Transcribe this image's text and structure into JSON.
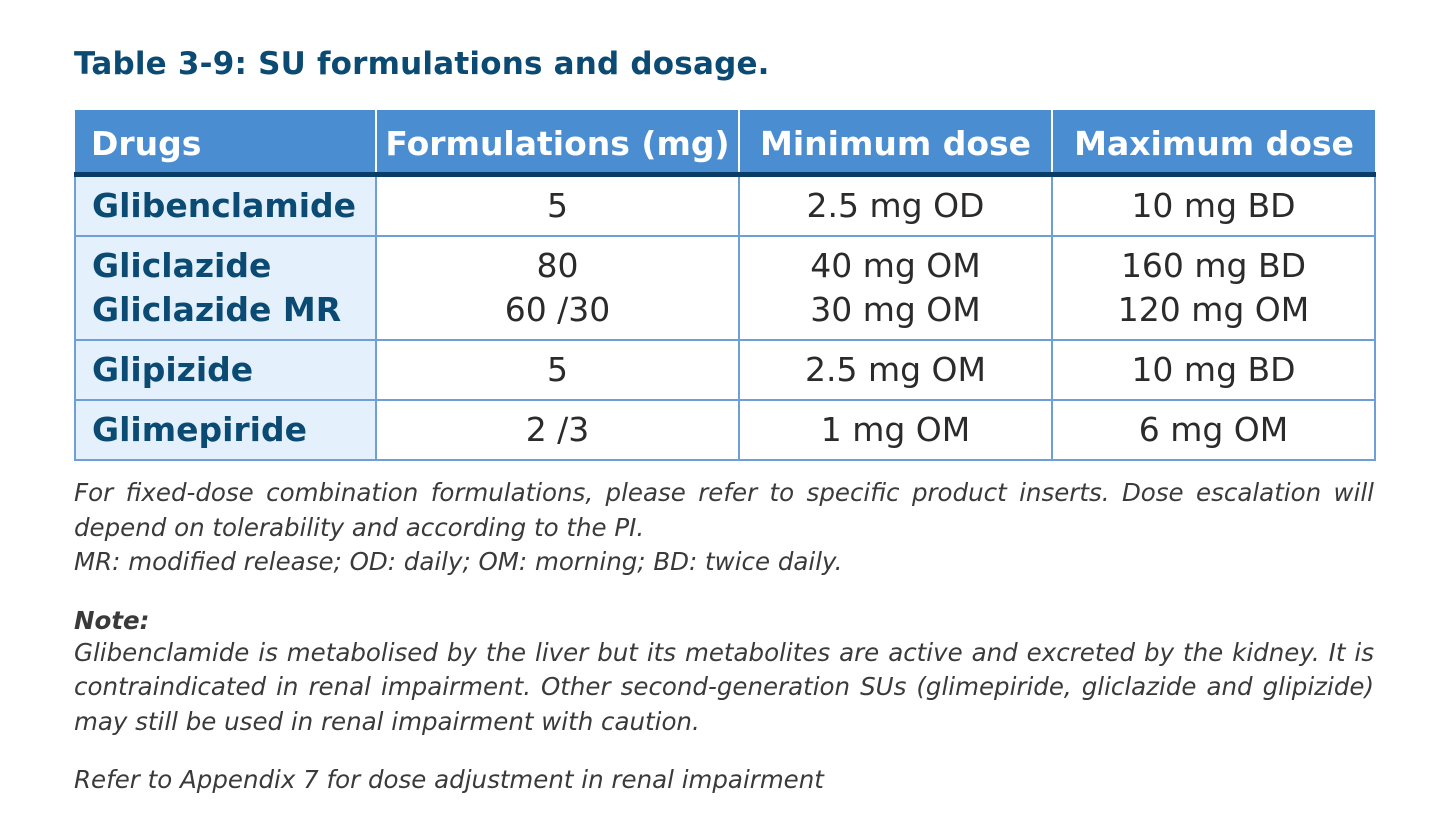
{
  "title": "Table 3-9: SU formulations and dosage.",
  "table": {
    "headers": [
      "Drugs",
      "Formulations (mg)",
      "Minimum dose",
      "Maximum dose"
    ],
    "rows": [
      {
        "drug": [
          "Glibenclamide"
        ],
        "formulation": [
          "5"
        ],
        "min": [
          "2.5 mg OD"
        ],
        "max": [
          "10 mg BD"
        ]
      },
      {
        "drug": [
          "Gliclazide",
          "Gliclazide MR"
        ],
        "formulation": [
          "80",
          "60 /30"
        ],
        "min": [
          "40 mg OM",
          "30 mg OM"
        ],
        "max": [
          "160 mg BD",
          "120 mg OM"
        ]
      },
      {
        "drug": [
          "Glipizide"
        ],
        "formulation": [
          "5"
        ],
        "min": [
          "2.5 mg OM"
        ],
        "max": [
          "10 mg BD"
        ]
      },
      {
        "drug": [
          "Glimepiride"
        ],
        "formulation": [
          "2 /3"
        ],
        "min": [
          "1 mg OM"
        ],
        "max": [
          "6 mg OM"
        ]
      }
    ]
  },
  "footnote": {
    "combination": "For fixed-dose combination formulations, please refer to specific product inserts. Dose escalation will depend on tolerability and according to the PI.",
    "abbreviations": "MR: modified release; OD: daily; OM: morning; BD: twice daily."
  },
  "note": {
    "heading": "Note:",
    "body": "Glibenclamide is metabolised by the liver but its metabolites are active and excreted by the kidney. It is contraindicated in renal impairment. Other second-generation SUs (glimepiride, gliclazide and glipizide) may still be used in renal impairment with caution."
  },
  "reference": "Refer to Appendix 7 for dose adjustment in renal impairment",
  "colors": {
    "title": "#0b4a73",
    "header_bg": "#4a8dd1",
    "header_rule": "#0b3e66",
    "drug_bg": "#e4f1fc",
    "border": "#6e9fd6"
  }
}
